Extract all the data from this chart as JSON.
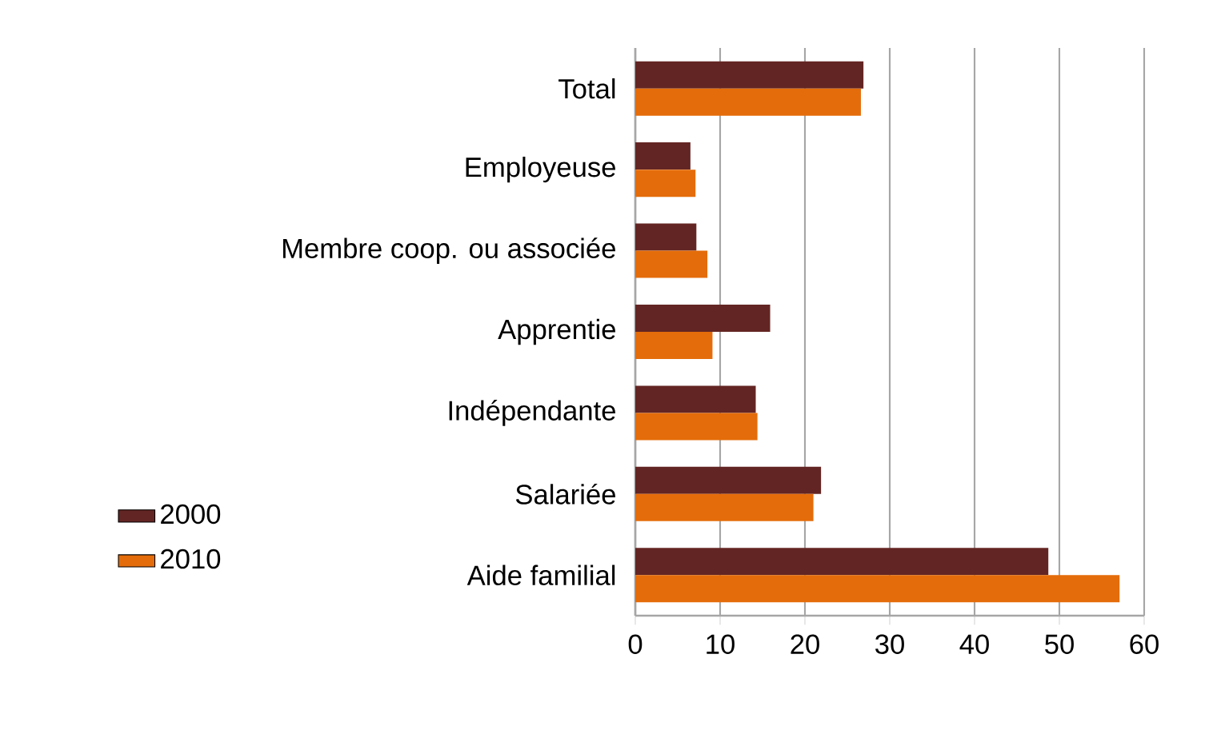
{
  "chart_data": {
    "type": "bar",
    "orientation": "horizontal",
    "categories": [
      "Total",
      "Employeuse",
      "Membre coop. ou associée",
      "Apprentie",
      "Indépendante",
      "Salariée",
      "Aide familial"
    ],
    "series": [
      {
        "name": "2000",
        "color": "#632523",
        "values": [
          26.9,
          6.5,
          7.2,
          15.9,
          14.2,
          21.9,
          48.7
        ]
      },
      {
        "name": "2010",
        "color": "#e46c0a",
        "values": [
          26.6,
          7.1,
          8.5,
          9.1,
          14.4,
          21.0,
          57.1
        ]
      }
    ],
    "xlim": [
      0,
      60
    ],
    "xticks": [
      0,
      10,
      20,
      30,
      40,
      50,
      60
    ],
    "grid": "x",
    "legend": "left"
  }
}
